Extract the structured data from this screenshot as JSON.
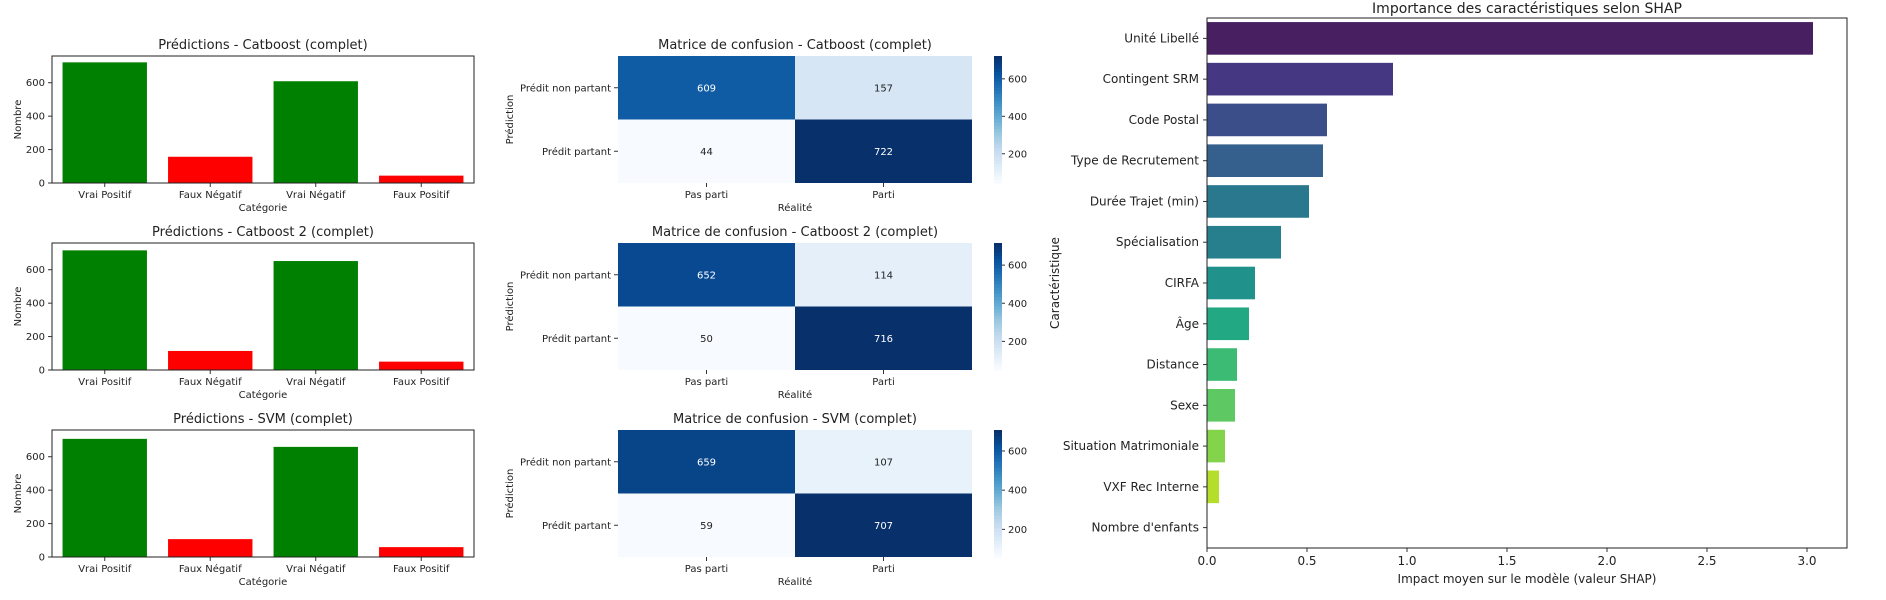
{
  "chart_data": [
    {
      "type": "bar",
      "title": "Prédictions - Catboost (complet)",
      "xlabel": "Catégorie",
      "ylabel": "Nombre",
      "categories": [
        "Vrai Positif",
        "Faux Négatif",
        "Vrai Négatif",
        "Faux Positif"
      ],
      "values": [
        722,
        157,
        609,
        44
      ],
      "colors": [
        "#008000",
        "#ff0000",
        "#008000",
        "#ff0000"
      ],
      "ylim": [
        0,
        760
      ],
      "yticks": [
        0,
        200,
        400,
        600
      ]
    },
    {
      "type": "heatmap",
      "title": "Matrice de confusion - Catboost (complet)",
      "xlabel": "Réalité",
      "ylabel": "Prédiction",
      "x_categories": [
        "Pas parti",
        "Parti"
      ],
      "y_categories": [
        "Prédit non partant",
        "Prédit partant"
      ],
      "values": [
        [
          609,
          157
        ],
        [
          44,
          722
        ]
      ],
      "colorbar_ticks": [
        200,
        400,
        600
      ],
      "colorbar_range": [
        44,
        722
      ]
    },
    {
      "type": "bar",
      "title": "Prédictions - Catboost 2 (complet)",
      "xlabel": "Catégorie",
      "ylabel": "Nombre",
      "categories": [
        "Vrai Positif",
        "Faux Négatif",
        "Vrai Négatif",
        "Faux Positif"
      ],
      "values": [
        716,
        114,
        652,
        50
      ],
      "colors": [
        "#008000",
        "#ff0000",
        "#008000",
        "#ff0000"
      ],
      "ylim": [
        0,
        760
      ],
      "yticks": [
        0,
        200,
        400,
        600
      ]
    },
    {
      "type": "heatmap",
      "title": "Matrice de confusion - Catboost 2 (complet)",
      "xlabel": "Réalité",
      "ylabel": "Prédiction",
      "x_categories": [
        "Pas parti",
        "Parti"
      ],
      "y_categories": [
        "Prédit non partant",
        "Prédit partant"
      ],
      "values": [
        [
          652,
          114
        ],
        [
          50,
          716
        ]
      ],
      "colorbar_ticks": [
        200,
        400,
        600
      ],
      "colorbar_range": [
        50,
        716
      ]
    },
    {
      "type": "bar",
      "title": "Prédictions - SVM (complet)",
      "xlabel": "Catégorie",
      "ylabel": "Nombre",
      "categories": [
        "Vrai Positif",
        "Faux Négatif",
        "Vrai Négatif",
        "Faux Positif"
      ],
      "values": [
        707,
        107,
        659,
        59
      ],
      "colors": [
        "#008000",
        "#ff0000",
        "#008000",
        "#ff0000"
      ],
      "ylim": [
        0,
        760
      ],
      "yticks": [
        0,
        200,
        400,
        600
      ]
    },
    {
      "type": "heatmap",
      "title": "Matrice de confusion - SVM (complet)",
      "xlabel": "Réalité",
      "ylabel": "Prédiction",
      "x_categories": [
        "Pas parti",
        "Parti"
      ],
      "y_categories": [
        "Prédit non partant",
        "Prédit partant"
      ],
      "values": [
        [
          659,
          107
        ],
        [
          59,
          707
        ]
      ],
      "colorbar_ticks": [
        200,
        400,
        600
      ],
      "colorbar_range": [
        59,
        707
      ]
    },
    {
      "type": "bar",
      "orientation": "horizontal",
      "title": "Importance des caractéristiques selon SHAP",
      "xlabel": "Impact moyen sur le modèle (valeur SHAP)",
      "ylabel": "Caractéristique",
      "categories": [
        "Unité Libellé",
        "Contingent SRM",
        "Code Postal",
        "Type de Recrutement",
        "Durée Trajet (min)",
        "Spécialisation",
        "CIRFA",
        "Âge",
        "Distance",
        "Sexe",
        "Situation Matrimoniale",
        "VXF Rec Interne",
        "Nombre d'enfants"
      ],
      "values": [
        3.03,
        0.93,
        0.6,
        0.58,
        0.51,
        0.37,
        0.24,
        0.21,
        0.15,
        0.14,
        0.09,
        0.06,
        0.0
      ],
      "colors": [
        "#482062",
        "#453781",
        "#3c4e8a",
        "#355f8d",
        "#2a788e",
        "#277f8e",
        "#21918c",
        "#23a884",
        "#3cbb75",
        "#5ec962",
        "#83d34b",
        "#b5de2b",
        "#e2e418"
      ],
      "xlim": [
        0,
        3.2
      ],
      "xticks": [
        0.0,
        0.5,
        1.0,
        1.5,
        2.0,
        2.5,
        3.0
      ],
      "xtick_labels": [
        "0.0",
        "0.5",
        "1.0",
        "1.5",
        "2.0",
        "2.5",
        "3.0"
      ]
    }
  ]
}
